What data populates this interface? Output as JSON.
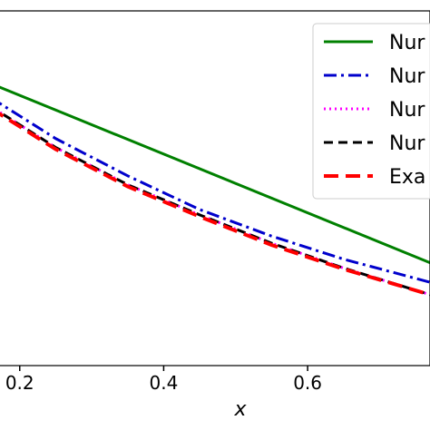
{
  "chart_data": {
    "type": "line",
    "title": "",
    "xlabel": "x",
    "ylabel": "",
    "xlim": [
      0.16,
      0.77
    ],
    "ylim": [
      0.0,
      1.0
    ],
    "x_ticks": [
      0.2,
      0.4,
      0.6
    ],
    "x_tick_labels": [
      "0.2",
      "0.4",
      "0.6"
    ],
    "grid": false,
    "legend_position": "top-right",
    "series": [
      {
        "name": "Nur",
        "color": "#008000",
        "style": "solid",
        "width": 3,
        "x": [
          0.16,
          0.77
        ],
        "y": [
          0.795,
          0.29
        ]
      },
      {
        "name": "Nur",
        "color": "#0000cc",
        "style": "dashdot",
        "width": 3,
        "x": [
          0.16,
          0.25,
          0.35,
          0.45,
          0.55,
          0.65,
          0.77
        ],
        "y": [
          0.755,
          0.64,
          0.535,
          0.44,
          0.365,
          0.3,
          0.235
        ]
      },
      {
        "name": "Nur",
        "color": "#ff00ff",
        "style": "dotted",
        "width": 3,
        "x": [
          0.16,
          0.25,
          0.35,
          0.45,
          0.55,
          0.65,
          0.77
        ],
        "y": [
          0.73,
          0.615,
          0.51,
          0.425,
          0.345,
          0.275,
          0.2
        ]
      },
      {
        "name": "Nur",
        "color": "#000000",
        "style": "dashed",
        "width": 3,
        "x": [
          0.16,
          0.25,
          0.35,
          0.45,
          0.55,
          0.65,
          0.77
        ],
        "y": [
          0.73,
          0.615,
          0.51,
          0.425,
          0.345,
          0.275,
          0.2
        ]
      },
      {
        "name": "Exa",
        "color": "#ff0000",
        "style": "longdash",
        "width": 4,
        "x": [
          0.16,
          0.25,
          0.35,
          0.45,
          0.55,
          0.65,
          0.77
        ],
        "y": [
          0.725,
          0.61,
          0.505,
          0.42,
          0.34,
          0.272,
          0.2
        ]
      }
    ]
  }
}
